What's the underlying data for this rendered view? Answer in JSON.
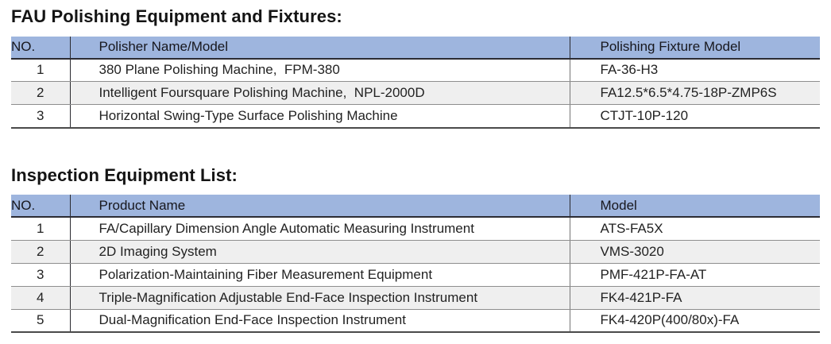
{
  "page": {
    "background_color": "#ffffff",
    "text_color": "#1f1f1f",
    "header_bg_color": "#9EB5DE",
    "stripe_bg_color": "#EFEFEF"
  },
  "sections": [
    {
      "id": "fau-polishing-equipment",
      "title": "FAU Polishing Equipment and Fixtures:",
      "columns": [
        "NO.",
        "Polisher Name/Model",
        "Polishing Fixture Model"
      ],
      "rows": [
        [
          "1",
          "380 Plane Polishing Machine,  FPM-380",
          "FA-36-H3"
        ],
        [
          "2",
          "Intelligent Foursquare Polishing Machine,  NPL-2000D",
          "FA12.5*6.5*4.75-18P-ZMP6S"
        ],
        [
          "3",
          "Horizontal Swing-Type Surface Polishing Machine",
          "CTJT-10P-120"
        ]
      ]
    },
    {
      "id": "inspection-equipment-list",
      "title": "Inspection Equipment List:",
      "columns": [
        "NO.",
        "Product Name",
        "Model"
      ],
      "rows": [
        [
          "1",
          "FA/Capillary Dimension Angle Automatic Measuring Instrument",
          "ATS-FA5X"
        ],
        [
          "2",
          "2D Imaging System",
          "VMS-3020"
        ],
        [
          "3",
          "Polarization-Maintaining Fiber Measurement Equipment",
          "PMF-421P-FA-AT"
        ],
        [
          "4",
          "Triple-Magnification Adjustable End-Face Inspection Instrument",
          "FK4-421P-FA"
        ],
        [
          "5",
          "Dual-Magnification End-Face Inspection Instrument",
          "FK4-420P(400/80x)-FA"
        ]
      ]
    }
  ]
}
